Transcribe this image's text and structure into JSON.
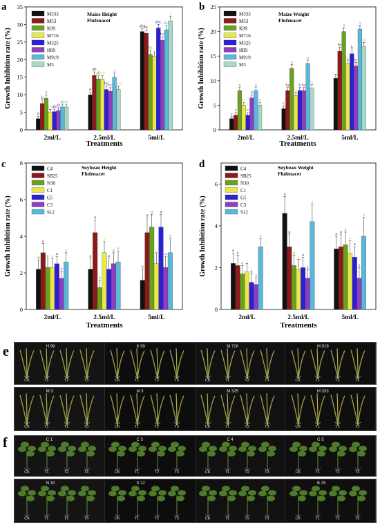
{
  "panels": [
    "a",
    "b",
    "c",
    "d",
    "e",
    "f"
  ],
  "treatments_label": "Treatments",
  "chart_data": [
    {
      "id": "a",
      "type": "bar",
      "title": "Maize Height",
      "subtitle": "Flufenacet",
      "xlabel": "Treatments",
      "ylabel": "Growth Inhibition rate (%)",
      "ylim": [
        0,
        35
      ],
      "yticks": [
        0,
        5,
        10,
        15,
        20,
        25,
        30,
        35
      ],
      "categories": [
        "2ml/L",
        "2.5ml/L",
        "5ml/L"
      ],
      "legend_position": "top-left",
      "series": [
        {
          "name": "M333",
          "color": "#111111",
          "values": [
            3.2,
            10.0,
            28.0
          ],
          "errors": [
            0.6,
            0.7,
            0.8
          ],
          "letters": [
            "d",
            "d",
            "abc"
          ]
        },
        {
          "name": "M53",
          "color": "#8b1a1a",
          "values": [
            7.5,
            15.5,
            27.5
          ],
          "errors": [
            1.0,
            1.0,
            1.0
          ],
          "letters": [
            "h",
            "ab",
            "bc"
          ]
        },
        {
          "name": "K99",
          "color": "#6aa121",
          "values": [
            9.0,
            14.5,
            21.5
          ],
          "errors": [
            1.0,
            0.9,
            1.2
          ],
          "letters": [
            "a",
            "ab",
            "bc"
          ]
        },
        {
          "name": "M716",
          "color": "#e8e84a",
          "values": [
            5.0,
            14.5,
            21.0
          ],
          "errors": [
            0.8,
            1.0,
            1.2
          ],
          "letters": [
            "bc",
            "abc",
            "c"
          ]
        },
        {
          "name": "M325",
          "color": "#2e1fd6",
          "values": [
            5.2,
            11.5,
            29.0
          ],
          "errors": [
            0.7,
            1.0,
            1.0
          ],
          "letters": [
            "ab",
            "bc",
            "abc"
          ]
        },
        {
          "name": "H99",
          "color": "#8e3fc0",
          "values": [
            5.5,
            11.0,
            25.5
          ],
          "errors": [
            0.8,
            1.0,
            1.0
          ],
          "letters": [
            "ab",
            "bc",
            "bc"
          ]
        },
        {
          "name": "M919",
          "color": "#5bb8d9",
          "values": [
            6.5,
            15.0,
            28.5
          ],
          "errors": [
            0.8,
            1.2,
            1.2
          ],
          "letters": [
            "ab",
            "a",
            "abc"
          ]
        },
        {
          "name": "M3",
          "color": "#a8d8c8",
          "values": [
            6.5,
            11.5,
            31.0
          ],
          "errors": [
            0.8,
            1.0,
            1.4
          ],
          "letters": [
            "ab",
            "bcd",
            "a"
          ]
        }
      ]
    },
    {
      "id": "b",
      "type": "bar",
      "title": "Maize Weight",
      "subtitle": "Flufenacet",
      "xlabel": "Treatments",
      "ylabel": "Growth Inhibition rate (%)",
      "ylim": [
        0,
        25
      ],
      "yticks": [
        0,
        5,
        10,
        15,
        20,
        25
      ],
      "categories": [
        "2ml/L",
        "2.5ml/L",
        "5ml/L"
      ],
      "legend_position": "top-left",
      "series": [
        {
          "name": "M333",
          "color": "#111111",
          "values": [
            2.3,
            4.3,
            10.5
          ],
          "errors": [
            0.4,
            0.6,
            0.8
          ],
          "letters": [
            "c",
            "c",
            ""
          ]
        },
        {
          "name": "M53",
          "color": "#8b1a1a",
          "values": [
            3.0,
            8.0,
            16.0
          ],
          "errors": [
            0.5,
            0.6,
            0.8
          ],
          "letters": [
            "c",
            "bc",
            "bc"
          ]
        },
        {
          "name": "K99",
          "color": "#6aa121",
          "values": [
            8.0,
            12.5,
            20.0
          ],
          "errors": [
            0.7,
            0.8,
            0.8
          ],
          "letters": [
            "a",
            "a",
            "a"
          ]
        },
        {
          "name": "M716",
          "color": "#e8e84a",
          "values": [
            5.0,
            7.0,
            13.5
          ],
          "errors": [
            0.6,
            0.6,
            0.7
          ],
          "letters": [
            "bc",
            "bc",
            "bc"
          ]
        },
        {
          "name": "M325",
          "color": "#2e1fd6",
          "values": [
            3.0,
            8.0,
            15.5
          ],
          "errors": [
            0.5,
            0.6,
            0.7
          ],
          "letters": [
            "c",
            "b",
            "b"
          ]
        },
        {
          "name": "H99",
          "color": "#8e3fc0",
          "values": [
            6.5,
            8.0,
            13.0
          ],
          "errors": [
            0.6,
            0.6,
            0.7
          ],
          "letters": [
            "b",
            "bc",
            "bc"
          ]
        },
        {
          "name": "M919",
          "color": "#5bb8d9",
          "values": [
            8.0,
            13.5,
            20.5
          ],
          "errors": [
            0.7,
            0.7,
            0.8
          ],
          "letters": [
            "a",
            "a",
            "a"
          ]
        },
        {
          "name": "M3",
          "color": "#a8d8c8",
          "values": [
            5.0,
            8.5,
            17.0
          ],
          "errors": [
            0.6,
            0.7,
            0.8
          ],
          "letters": [
            "bc",
            "bc",
            "ab"
          ]
        }
      ]
    },
    {
      "id": "c",
      "type": "bar",
      "title": "Soybean Height",
      "subtitle": "Flufenacet",
      "xlabel": "Treatments",
      "ylabel": "Growth Inhibition rate (%)",
      "ylim": [
        0,
        8
      ],
      "yticks": [
        0,
        2,
        4,
        6,
        8
      ],
      "categories": [
        "2ml/L",
        "2.5ml/L",
        "5ml/L"
      ],
      "legend_position": "top-left",
      "series": [
        {
          "name": "C4",
          "color": "#111111",
          "values": [
            2.2,
            2.2,
            1.6
          ],
          "errors": [
            0.5,
            0.6,
            0.6
          ],
          "letters": [
            "a",
            "a",
            "a"
          ]
        },
        {
          "name": "SB25",
          "color": "#8b1a1a",
          "values": [
            3.1,
            4.2,
            4.2
          ],
          "errors": [
            0.5,
            0.7,
            0.8
          ],
          "letters": [
            "a",
            "a",
            "a"
          ]
        },
        {
          "name": "N30",
          "color": "#6aa121",
          "values": [
            2.3,
            1.2,
            4.5
          ],
          "errors": [
            0.5,
            0.4,
            0.7
          ],
          "letters": [
            "a",
            "a",
            "a"
          ]
        },
        {
          "name": "C1",
          "color": "#e8e84a",
          "values": [
            2.3,
            3.1,
            2.5
          ],
          "errors": [
            0.5,
            0.6,
            0.6
          ],
          "letters": [
            "a",
            "a",
            "a"
          ]
        },
        {
          "name": "G5",
          "color": "#2e1fd6",
          "values": [
            2.5,
            2.2,
            4.5
          ],
          "errors": [
            0.4,
            0.6,
            0.7
          ],
          "letters": [
            "a",
            "a",
            "a"
          ]
        },
        {
          "name": "C3",
          "color": "#8e3fc0",
          "values": [
            1.7,
            2.5,
            2.3
          ],
          "errors": [
            0.4,
            0.6,
            0.6
          ],
          "letters": [
            "a",
            "a",
            "a"
          ]
        },
        {
          "name": "S12",
          "color": "#5bb8d9",
          "values": [
            2.6,
            2.6,
            3.1
          ],
          "errors": [
            0.5,
            0.6,
            0.8
          ],
          "letters": [
            "a",
            "a",
            "a"
          ]
        }
      ]
    },
    {
      "id": "d",
      "type": "bar",
      "title": "Soybean Weight",
      "subtitle": "Flufenacet",
      "xlabel": "Treatments",
      "ylabel": "Growth Inhibition rate (%)",
      "ylim": [
        0,
        7
      ],
      "yticks": [
        0,
        2,
        4,
        6
      ],
      "categories": [
        "2ml/L",
        "2.5ml/L",
        "5ml/L"
      ],
      "legend_position": "top-left",
      "series": [
        {
          "name": "C4",
          "color": "#111111",
          "values": [
            2.2,
            4.6,
            2.9
          ],
          "errors": [
            0.5,
            0.8,
            0.6
          ],
          "letters": [
            "a",
            "a",
            "a"
          ]
        },
        {
          "name": "SB25",
          "color": "#8b1a1a",
          "values": [
            2.1,
            3.0,
            3.0
          ],
          "errors": [
            0.5,
            0.6,
            0.6
          ],
          "letters": [
            "a",
            "a",
            "a"
          ]
        },
        {
          "name": "N30",
          "color": "#6aa121",
          "values": [
            1.7,
            2.1,
            3.1
          ],
          "errors": [
            0.4,
            0.5,
            0.6
          ],
          "letters": [
            "a",
            "a",
            "a"
          ]
        },
        {
          "name": "C1",
          "color": "#e8e84a",
          "values": [
            1.8,
            1.9,
            2.7
          ],
          "errors": [
            0.4,
            0.5,
            0.6
          ],
          "letters": [
            "a",
            "a",
            "a"
          ]
        },
        {
          "name": "G5",
          "color": "#2e1fd6",
          "values": [
            1.3,
            2.0,
            2.5
          ],
          "errors": [
            0.4,
            0.5,
            0.5
          ],
          "letters": [
            "a",
            "a",
            "a"
          ]
        },
        {
          "name": "C3",
          "color": "#8e3fc0",
          "values": [
            1.2,
            1.5,
            1.5
          ],
          "errors": [
            0.3,
            0.4,
            0.5
          ],
          "letters": [
            "a",
            "a",
            "a"
          ]
        },
        {
          "name": "S12",
          "color": "#5bb8d9",
          "values": [
            3.0,
            4.2,
            3.5
          ],
          "errors": [
            0.4,
            0.8,
            0.9
          ],
          "letters": [
            "a",
            "a",
            "a"
          ]
        }
      ]
    }
  ],
  "photos": {
    "e": [
      {
        "labels": [
          "H 99",
          "K 99",
          "M 716",
          "M 919"
        ],
        "captions": [
          "CK",
          "T1",
          "T2",
          "T3"
        ]
      },
      {
        "labels": [
          "M 3",
          "M 3",
          "M 325",
          "M 333"
        ],
        "captions": [
          "CK",
          "T1",
          "T2",
          "T3"
        ]
      }
    ],
    "f": [
      {
        "labels": [
          "C 1",
          "C 3",
          "C 4",
          "G 5"
        ],
        "captions": [
          "CK",
          "T1",
          "T2",
          "T3"
        ]
      },
      {
        "labels": [
          "N 30",
          "S 12",
          "",
          "B 25"
        ],
        "captions": [
          "CK",
          "T1",
          "T2",
          "T3"
        ]
      }
    ],
    "plant_color_maize": "#9c9a3e",
    "plant_color_soy": "#4f7a2a"
  }
}
